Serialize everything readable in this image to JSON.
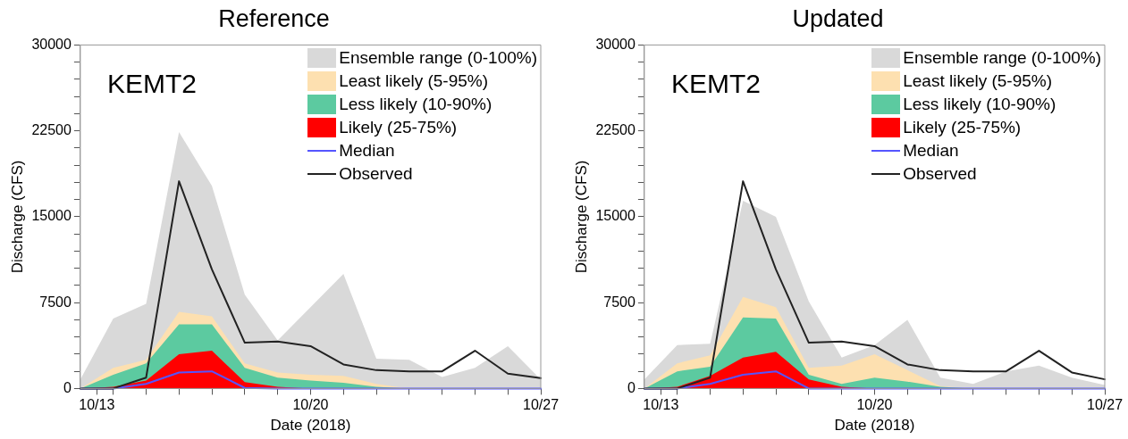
{
  "chart_data": [
    {
      "type": "area",
      "title": "Reference",
      "xlabel": "Date (2018)",
      "ylabel": "Discharge (CFS)",
      "annotations": [
        "KEMT2"
      ],
      "legend": "top right",
      "grid": false,
      "marker": "none",
      "line_style": "solid",
      "x": [
        "2018-10-13",
        "2018-10-14",
        "2018-10-15",
        "2018-10-16",
        "2018-10-17",
        "2018-10-18",
        "2018-10-19",
        "2018-10-20",
        "2018-10-21",
        "2018-10-22",
        "2018-10-23",
        "2018-10-24",
        "2018-10-25",
        "2018-10-26",
        "2018-10-27"
      ],
      "xlim": [
        "2018-10-13",
        "2018-10-27"
      ],
      "xticks": [
        {
          "value": "2018-10-13T12:00",
          "label": "10/13"
        },
        {
          "value": "2018-10-14",
          "label": null
        },
        {
          "value": "2018-10-15",
          "label": null
        },
        {
          "value": "2018-10-16",
          "label": null
        },
        {
          "value": "2018-10-17",
          "label": null
        },
        {
          "value": "2018-10-18",
          "label": null
        },
        {
          "value": "2018-10-19",
          "label": null
        },
        {
          "value": "2018-10-20",
          "label": "10/20"
        },
        {
          "value": "2018-10-21",
          "label": null
        },
        {
          "value": "2018-10-22",
          "label": null
        },
        {
          "value": "2018-10-23",
          "label": null
        },
        {
          "value": "2018-10-24",
          "label": null
        },
        {
          "value": "2018-10-25",
          "label": null
        },
        {
          "value": "2018-10-26",
          "label": null
        },
        {
          "value": "2018-10-27",
          "label": "10/27"
        }
      ],
      "ylim": [
        0,
        30000
      ],
      "yticks": [
        0,
        {
          "value": 1500,
          "label": null
        },
        {
          "value": 3000,
          "label": null
        },
        {
          "value": 4500,
          "label": null
        },
        {
          "value": 6000,
          "label": null
        },
        7500,
        {
          "value": 9000,
          "label": null
        },
        {
          "value": 10500,
          "label": null
        },
        {
          "value": 12000,
          "label": null
        },
        {
          "value": 13500,
          "label": null
        },
        15000,
        {
          "value": 16500,
          "label": null
        },
        {
          "value": 18000,
          "label": null
        },
        {
          "value": 19500,
          "label": null
        },
        {
          "value": 21000,
          "label": null
        },
        22500,
        {
          "value": 24000,
          "label": null
        },
        {
          "value": 25500,
          "label": null
        },
        {
          "value": 27000,
          "label": null
        },
        {
          "value": 28500,
          "label": null
        },
        30000
      ],
      "series": [
        {
          "name": "Ensemble range (0-100%)",
          "color": "#d9d9d9",
          "values": [
            800,
            6100,
            7400,
            22400,
            17700,
            8200,
            4200,
            7100,
            10000,
            2600,
            2500,
            1000,
            1800,
            3700,
            800
          ]
        },
        {
          "name": "Least likely (5-95%)",
          "color": "#fde0b0",
          "values": [
            0,
            1800,
            2500,
            6700,
            6300,
            2200,
            1400,
            1200,
            1100,
            400,
            0,
            0,
            0,
            0,
            0
          ]
        },
        {
          "name": "Less likely (10-90%)",
          "color": "#5ccaa0",
          "values": [
            0,
            1200,
            2200,
            5600,
            5600,
            1800,
            950,
            700,
            500,
            150,
            0,
            0,
            0,
            0,
            0
          ]
        },
        {
          "name": "Likely (25-75%)",
          "color": "#ff0000",
          "values": [
            0,
            150,
            700,
            3000,
            3300,
            550,
            150,
            0,
            0,
            0,
            0,
            0,
            0,
            0,
            0
          ]
        },
        {
          "name": "Median",
          "type": "line",
          "color": "#5555ff",
          "values": [
            0,
            0,
            400,
            1400,
            1500,
            50,
            0,
            0,
            0,
            0,
            0,
            0,
            0,
            0,
            0
          ]
        },
        {
          "name": "Observed",
          "type": "line",
          "color": "#222222",
          "values": [
            0,
            0,
            950,
            18100,
            10400,
            4000,
            4100,
            3700,
            2100,
            1600,
            1500,
            1500,
            3300,
            1300,
            900
          ]
        }
      ]
    },
    {
      "type": "area",
      "title": "Updated",
      "xlabel": "Date (2018)",
      "ylabel": "Discharge (CFS)",
      "annotations": [
        "KEMT2"
      ],
      "legend": "top right",
      "grid": false,
      "marker": "none",
      "line_style": "solid",
      "x": [
        "2018-10-13",
        "2018-10-14",
        "2018-10-15",
        "2018-10-16",
        "2018-10-17",
        "2018-10-18",
        "2018-10-19",
        "2018-10-20",
        "2018-10-21",
        "2018-10-22",
        "2018-10-23",
        "2018-10-24",
        "2018-10-25",
        "2018-10-26",
        "2018-10-27"
      ],
      "xlim": [
        "2018-10-13",
        "2018-10-27"
      ],
      "xticks": [
        {
          "value": "2018-10-13T12:00",
          "label": "10/13"
        },
        {
          "value": "2018-10-14",
          "label": null
        },
        {
          "value": "2018-10-15",
          "label": null
        },
        {
          "value": "2018-10-16",
          "label": null
        },
        {
          "value": "2018-10-17",
          "label": null
        },
        {
          "value": "2018-10-18",
          "label": null
        },
        {
          "value": "2018-10-19",
          "label": null
        },
        {
          "value": "2018-10-20",
          "label": "10/20"
        },
        {
          "value": "2018-10-21",
          "label": null
        },
        {
          "value": "2018-10-22",
          "label": null
        },
        {
          "value": "2018-10-23",
          "label": null
        },
        {
          "value": "2018-10-24",
          "label": null
        },
        {
          "value": "2018-10-25",
          "label": null
        },
        {
          "value": "2018-10-26",
          "label": null
        },
        {
          "value": "2018-10-27",
          "label": "10/27"
        }
      ],
      "ylim": [
        0,
        30000
      ],
      "yticks": [
        0,
        {
          "value": 1500,
          "label": null
        },
        {
          "value": 3000,
          "label": null
        },
        {
          "value": 4500,
          "label": null
        },
        {
          "value": 6000,
          "label": null
        },
        7500,
        {
          "value": 9000,
          "label": null
        },
        {
          "value": 10500,
          "label": null
        },
        {
          "value": 12000,
          "label": null
        },
        {
          "value": 13500,
          "label": null
        },
        15000,
        {
          "value": 16500,
          "label": null
        },
        {
          "value": 18000,
          "label": null
        },
        {
          "value": 19500,
          "label": null
        },
        {
          "value": 21000,
          "label": null
        },
        22500,
        {
          "value": 24000,
          "label": null
        },
        {
          "value": 25500,
          "label": null
        },
        {
          "value": 27000,
          "label": null
        },
        {
          "value": 28500,
          "label": null
        },
        30000
      ],
      "series": [
        {
          "name": "Ensemble range (0-100%)",
          "color": "#d9d9d9",
          "values": [
            800,
            3800,
            3900,
            16400,
            15000,
            7600,
            2700,
            3800,
            6000,
            950,
            400,
            1500,
            2000,
            950,
            300
          ]
        },
        {
          "name": "Least likely (5-95%)",
          "color": "#fde0b0",
          "values": [
            0,
            2200,
            2900,
            8000,
            7100,
            1800,
            2000,
            3000,
            1600,
            200,
            0,
            0,
            0,
            0,
            0
          ]
        },
        {
          "name": "Less likely (10-90%)",
          "color": "#5ccaa0",
          "values": [
            0,
            1500,
            1900,
            6200,
            6100,
            1200,
            400,
            950,
            600,
            150,
            0,
            0,
            0,
            0,
            0
          ]
        },
        {
          "name": "Likely (25-75%)",
          "color": "#ff0000",
          "values": [
            0,
            150,
            1100,
            2700,
            3200,
            800,
            150,
            0,
            0,
            0,
            0,
            0,
            0,
            0,
            0
          ]
        },
        {
          "name": "Median",
          "type": "line",
          "color": "#5555ff",
          "values": [
            0,
            0,
            400,
            1200,
            1500,
            0,
            0,
            0,
            0,
            0,
            0,
            0,
            0,
            0,
            0
          ]
        },
        {
          "name": "Observed",
          "type": "line",
          "color": "#222222",
          "values": [
            0,
            0,
            950,
            18100,
            10400,
            4000,
            4100,
            3700,
            2100,
            1600,
            1500,
            1500,
            3300,
            1400,
            800
          ]
        }
      ]
    }
  ]
}
